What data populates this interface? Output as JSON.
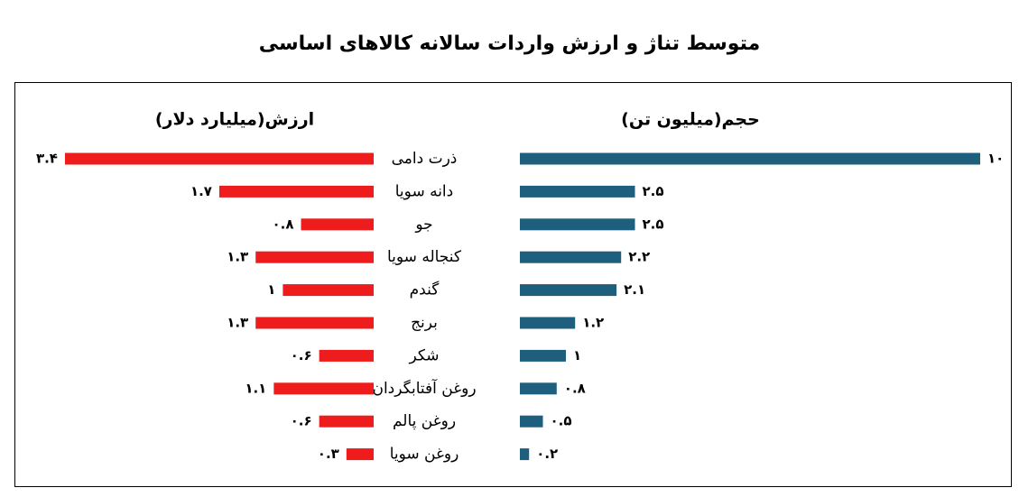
{
  "chart_data": {
    "type": "bar",
    "title": "متوسط تناژ و ارزش واردات سالانه کالاهای اساسی",
    "categories": [
      "ذرت دامی",
      "دانه سویا",
      "جو",
      "کنجاله سویا",
      "گندم",
      "برنج",
      "شکر",
      "روغن آفتابگردان",
      "روغن پالم",
      "روغن سویا"
    ],
    "series": [
      {
        "name": "حجم(میلیون تن)",
        "color": "#1f5f7e",
        "values": [
          10,
          2.5,
          2.5,
          2.2,
          2.1,
          1.2,
          1,
          0.8,
          0.5,
          0.2
        ],
        "labels": [
          "۱۰",
          "۲.۵",
          "۲.۵",
          "۲.۲",
          "۲.۱",
          "۱.۲",
          "۱",
          "۰.۸",
          "۰.۵",
          "۰.۲"
        ]
      },
      {
        "name": "ارزش(میلیارد دلار)",
        "color": "#ee1c1c",
        "values": [
          3.4,
          1.7,
          0.8,
          1.3,
          1,
          1.3,
          0.6,
          1.1,
          0.6,
          0.3
        ],
        "labels": [
          "۳.۴",
          "۱.۷",
          "۰.۸",
          "۱.۳",
          "۱",
          "۱.۳",
          "۰.۶",
          "۱.۱",
          "۰.۶",
          "۰.۳"
        ]
      }
    ],
    "grid": false
  }
}
